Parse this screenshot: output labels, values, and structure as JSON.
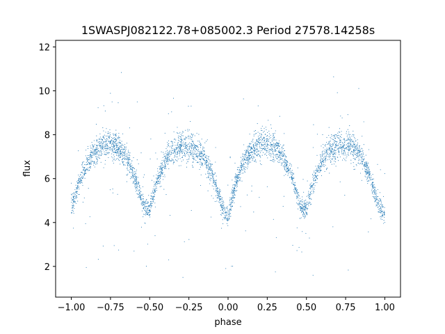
{
  "chart_data": {
    "type": "scatter",
    "title": "1SWASPJ082122.78+085002.3 Period 27578.14258s",
    "xlabel": "phase",
    "ylabel": "flux",
    "xlim": [
      -1.1,
      1.1
    ],
    "ylim": [
      0.6,
      12.3
    ],
    "xticks": [
      -1.0,
      -0.75,
      -0.5,
      -0.25,
      0.0,
      0.25,
      0.5,
      0.75,
      1.0
    ],
    "xtick_labels": [
      "−1.00",
      "−0.75",
      "−0.50",
      "−0.25",
      "0.00",
      "0.25",
      "0.50",
      "0.75",
      "1.00"
    ],
    "yticks": [
      2,
      4,
      6,
      8,
      10,
      12
    ],
    "ytick_labels": [
      "2",
      "4",
      "6",
      "8",
      "10",
      "12"
    ],
    "grid": false,
    "series": [
      {
        "marker_color": "#1f77b4",
        "description": "phase-folded light curve, repeating twice over phase −1 to 1",
        "x": [
          -1.0,
          -0.95,
          -0.9,
          -0.85,
          -0.8,
          -0.75,
          -0.7,
          -0.65,
          -0.6,
          -0.55,
          -0.52,
          -0.5,
          -0.45,
          -0.4,
          -0.35,
          -0.3,
          -0.25,
          -0.2,
          -0.15,
          -0.1,
          -0.05,
          -0.02,
          0.0,
          0.05,
          0.1,
          0.15,
          0.2,
          0.25,
          0.3,
          0.35,
          0.4,
          0.45,
          0.48,
          0.5,
          0.55,
          0.6,
          0.65,
          0.7,
          0.75,
          0.8,
          0.85,
          0.9,
          0.95,
          0.98,
          1.0
        ],
        "y": [
          4.6,
          5.8,
          6.7,
          7.2,
          7.5,
          7.55,
          7.4,
          7.0,
          6.2,
          5.0,
          4.5,
          4.7,
          5.9,
          6.8,
          7.3,
          7.5,
          7.5,
          7.3,
          6.9,
          6.2,
          5.0,
          4.4,
          4.3,
          5.8,
          6.8,
          7.3,
          7.5,
          7.55,
          7.4,
          7.0,
          6.2,
          5.0,
          4.5,
          4.7,
          5.9,
          6.8,
          7.3,
          7.5,
          7.55,
          7.4,
          7.0,
          6.2,
          5.0,
          4.5,
          4.4
        ]
      }
    ]
  }
}
